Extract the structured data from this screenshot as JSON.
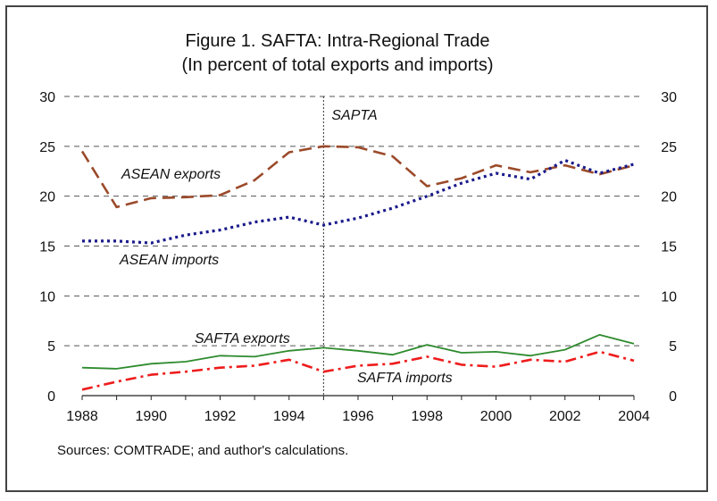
{
  "chart_data": {
    "type": "line",
    "title": "Figure 1. SAFTA: Intra-Regional Trade",
    "subtitle": "(In percent of total exports and imports)",
    "source": "Sources: COMTRADE; and author's calculations.",
    "x": [
      1988,
      1989,
      1990,
      1991,
      1992,
      1993,
      1994,
      1995,
      1996,
      1997,
      1998,
      1999,
      2000,
      2001,
      2002,
      2003,
      2004
    ],
    "x_ticks": [
      "1988",
      "1990",
      "1992",
      "1994",
      "1996",
      "1998",
      "2000",
      "2002",
      "2004"
    ],
    "y_ticks": [
      "0",
      "5",
      "10",
      "15",
      "20",
      "25",
      "30"
    ],
    "ylim": [
      0,
      30
    ],
    "xlim": [
      1988,
      2004
    ],
    "grid": "horizontal dashed",
    "annotation": {
      "label": "SAPTA",
      "x": 1995
    },
    "series": [
      {
        "name": "ASEAN exports",
        "color": "#9b4a2a",
        "style": "dashed",
        "values": [
          24.5,
          18.9,
          19.8,
          19.9,
          20.1,
          21.6,
          24.4,
          25.0,
          24.9,
          24.0,
          21.0,
          21.8,
          23.1,
          22.4,
          23.1,
          22.2,
          23.1
        ]
      },
      {
        "name": "ASEAN imports",
        "color": "#1a1a8c",
        "style": "dotted",
        "values": [
          15.5,
          15.5,
          15.3,
          16.1,
          16.6,
          17.4,
          17.9,
          17.1,
          17.8,
          18.8,
          20.0,
          21.3,
          22.3,
          21.7,
          23.6,
          22.3,
          23.2
        ]
      },
      {
        "name": "SAFTA exports",
        "color": "#2e8b2e",
        "style": "solid",
        "values": [
          2.8,
          2.7,
          3.2,
          3.4,
          4.0,
          3.9,
          4.5,
          4.8,
          4.5,
          4.1,
          5.1,
          4.3,
          4.4,
          4.0,
          4.6,
          6.1,
          5.2
        ]
      },
      {
        "name": "SAFTA imports",
        "color": "#ee1c1c",
        "style": "dashdot",
        "values": [
          0.6,
          1.4,
          2.1,
          2.4,
          2.8,
          3.0,
          3.6,
          2.4,
          3.0,
          3.2,
          3.9,
          3.1,
          2.9,
          3.6,
          3.4,
          4.4,
          3.5
        ]
      }
    ],
    "series_labels": [
      "ASEAN exports",
      "ASEAN imports",
      "SAFTA exports",
      "SAFTA imports"
    ]
  }
}
